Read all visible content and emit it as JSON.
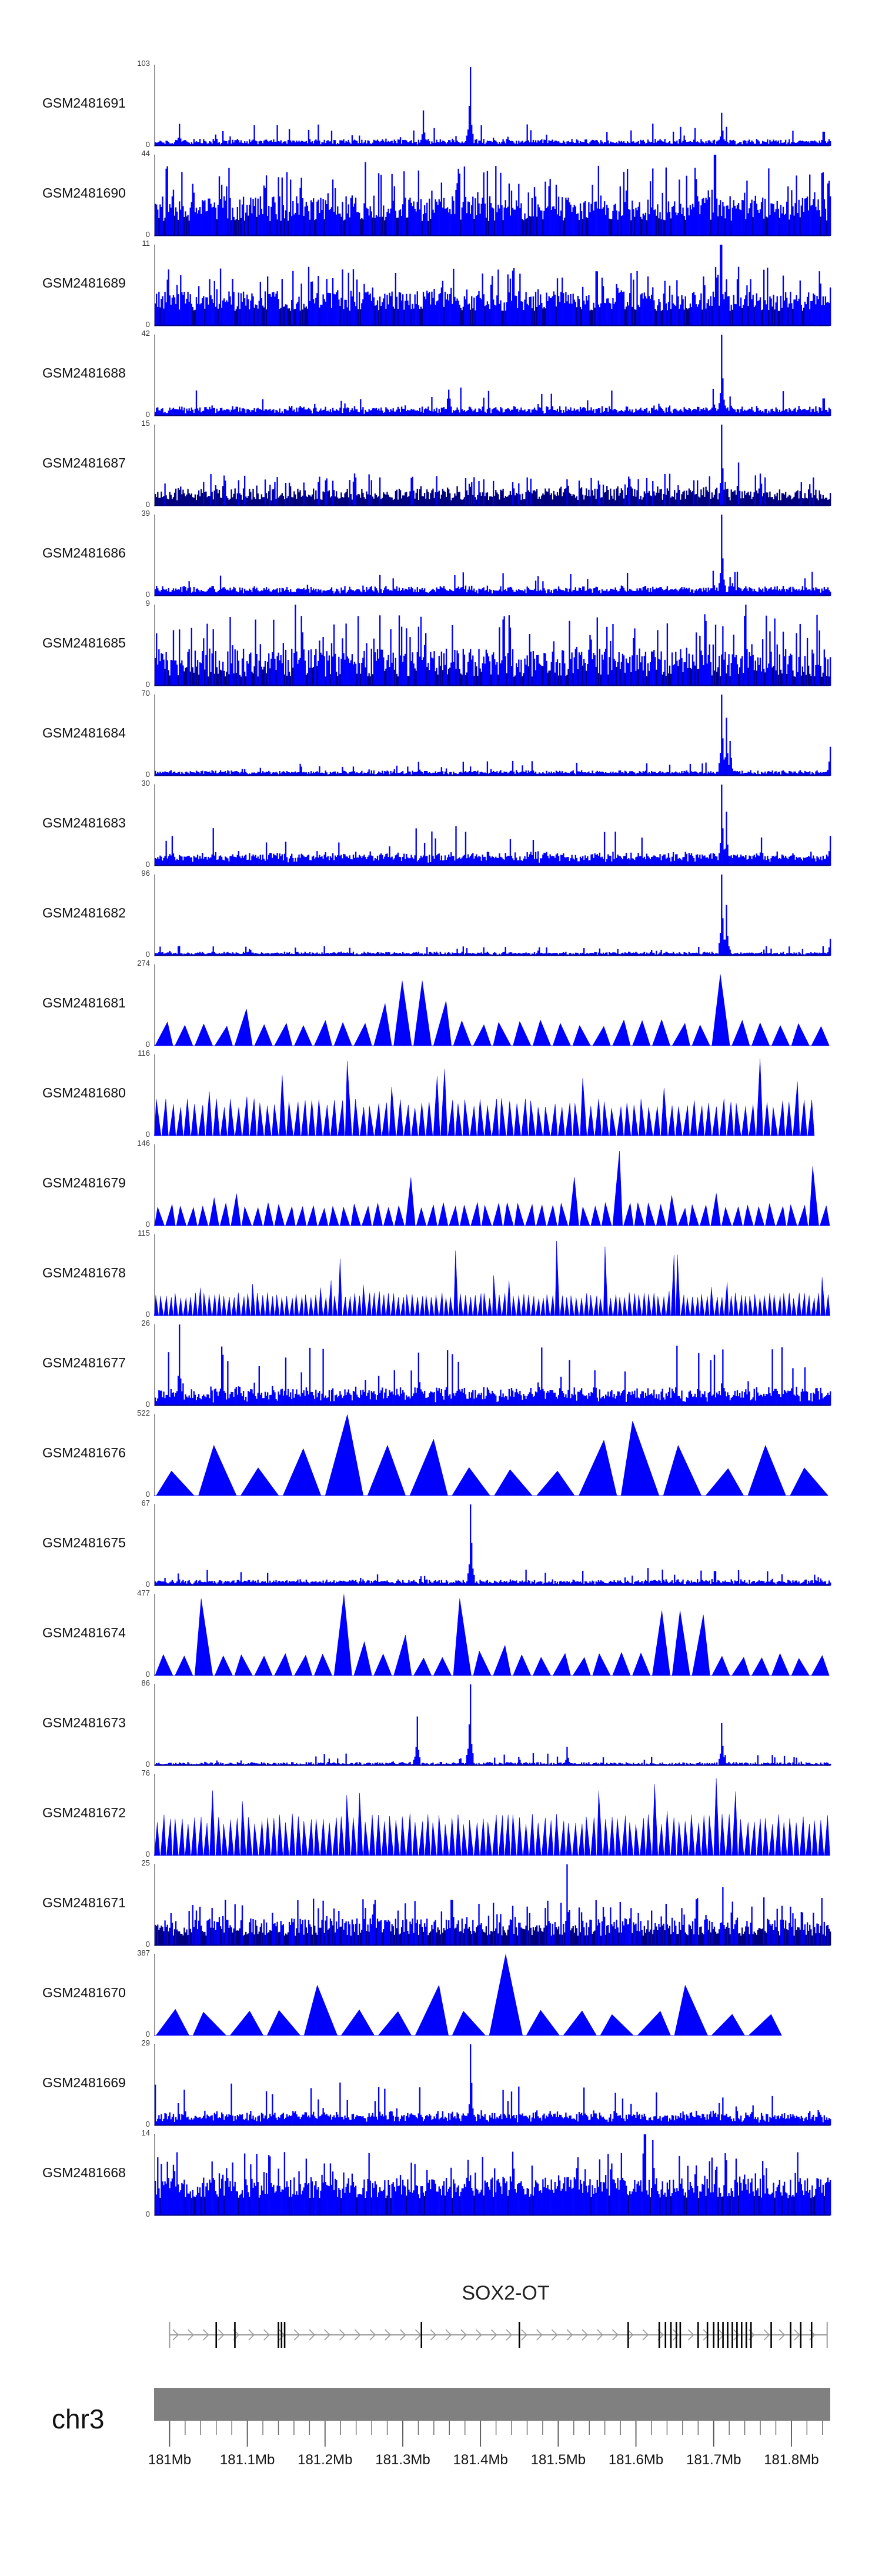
{
  "chart_data": {
    "type": "area",
    "description_free": true,
    "x_range_mb": [
      180.98,
      181.85
    ],
    "tracks": [
      {
        "name": "GSM2481691",
        "ymax": "103",
        "ymin": "0",
        "style": "signal",
        "baseline": 3,
        "noise": 10,
        "peaks": [
          [
            181.011,
            28
          ],
          [
            181.325,
            45
          ],
          [
            181.385,
            100
          ],
          [
            181.709,
            42
          ],
          [
            181.84,
            18
          ]
        ]
      },
      {
        "name": "GSM2481690",
        "ymax": "44",
        "ymin": "0",
        "style": "dense",
        "baseline": 8,
        "noise": 30,
        "peaks": [
          [
            181.25,
            40
          ],
          [
            181.55,
            38
          ],
          [
            181.7,
            44
          ]
        ]
      },
      {
        "name": "GSM2481689",
        "ymax": "11",
        "ymin": "0",
        "style": "dense",
        "baseline": 2,
        "noise": 6,
        "peaks": [
          [
            181.708,
            11
          ],
          [
            181.73,
            8
          ]
        ]
      },
      {
        "name": "GSM2481688",
        "ymax": "42",
        "ymin": "0",
        "style": "signal",
        "baseline": 2,
        "noise": 5,
        "peaks": [
          [
            181.709,
            42
          ],
          [
            181.698,
            14
          ],
          [
            181.72,
            10
          ],
          [
            181.84,
            9
          ]
        ]
      },
      {
        "name": "GSM2481687",
        "ymax": "15",
        "ymin": "0",
        "style": "dense",
        "baseline": 1,
        "noise": 5,
        "peaks": [
          [
            181.709,
            15
          ],
          [
            181.73,
            8
          ]
        ]
      },
      {
        "name": "GSM2481686",
        "ymax": "39",
        "ymin": "0",
        "style": "signal",
        "baseline": 2,
        "noise": 4,
        "peaks": [
          [
            181.709,
            39
          ],
          [
            181.698,
            12
          ],
          [
            181.72,
            9
          ]
        ]
      },
      {
        "name": "GSM2481685",
        "ymax": "9",
        "ymin": "0",
        "style": "dense",
        "baseline": 1,
        "noise": 7,
        "peaks": [
          [
            181.16,
            9
          ],
          [
            181.74,
            9
          ]
        ]
      },
      {
        "name": "GSM2481684",
        "ymax": "70",
        "ymin": "0",
        "style": "signal",
        "baseline": 2,
        "noise": 4,
        "peaks": [
          [
            181.709,
            70
          ],
          [
            181.715,
            50
          ],
          [
            181.72,
            30
          ],
          [
            181.319,
            12
          ],
          [
            181.385,
            8
          ],
          [
            181.848,
            25
          ]
        ]
      },
      {
        "name": "GSM2481683",
        "ymax": "30",
        "ymin": "0",
        "style": "signal",
        "baseline": 2,
        "noise": 5,
        "peaks": [
          [
            181.709,
            30
          ],
          [
            181.715,
            20
          ],
          [
            181.848,
            11
          ]
        ]
      },
      {
        "name": "GSM2481682",
        "ymax": "96",
        "ymin": "0",
        "style": "signal",
        "baseline": 2,
        "noise": 4,
        "peaks": [
          [
            181.709,
            96
          ],
          [
            181.715,
            60
          ],
          [
            181.848,
            20
          ]
        ]
      },
      {
        "name": "GSM2481681",
        "ymax": "274",
        "ymin": "0",
        "style": "tri",
        "count": 34,
        "base_h": 0.28,
        "peaks": [
          [
            181.311,
            0.8
          ],
          [
            181.709,
            0.88
          ],
          [
            181.27,
            0.52
          ],
          [
            181.35,
            0.55
          ]
        ]
      },
      {
        "name": "GSM2481680",
        "ymax": "116",
        "ymin": "0",
        "style": "tri",
        "count": 90,
        "base_h": 0.4,
        "end": 181.83,
        "peaks": [
          [
            181.229,
            0.92
          ],
          [
            181.352,
            0.82
          ],
          [
            181.735,
            0.95
          ],
          [
            181.757,
            0.95
          ],
          [
            181.29,
            0.6
          ]
        ]
      },
      {
        "name": "GSM2481679",
        "ymax": "146",
        "ymin": "0",
        "style": "tri",
        "count": 62,
        "base_h": 0.25,
        "peaks": [
          [
            181.58,
            0.92
          ],
          [
            181.31,
            0.45
          ],
          [
            181.52,
            0.6
          ],
          [
            181.83,
            0.5
          ]
        ]
      },
      {
        "name": "GSM2481678",
        "ymax": "115",
        "ymin": "0",
        "style": "tri",
        "count": 140,
        "base_h": 0.25,
        "peaks": [
          [
            181.5,
            0.92
          ],
          [
            181.37,
            0.8
          ],
          [
            181.56,
            0.85
          ],
          [
            181.22,
            0.7
          ],
          [
            181.65,
            0.75
          ]
        ]
      },
      {
        "name": "GSM2481677",
        "ymax": "26",
        "ymin": "0",
        "style": "signal",
        "baseline": 2,
        "noise": 7,
        "peaks": [
          [
            181.011,
            26
          ],
          [
            181.319,
            17
          ],
          [
            181.37,
            14
          ],
          [
            181.71,
            18
          ],
          [
            181.8,
            12
          ]
        ]
      },
      {
        "name": "GSM2481676",
        "ymax": "522",
        "ymin": "0",
        "style": "tri",
        "count": 16,
        "base_h": 0.35,
        "peaks": [
          [
            181.034,
            0.62
          ],
          [
            181.169,
            0.58
          ],
          [
            181.207,
            1.0
          ],
          [
            181.304,
            0.62
          ],
          [
            181.605,
            0.92
          ],
          [
            181.626,
            0.62
          ],
          [
            181.761,
            0.62
          ]
        ]
      },
      {
        "name": "GSM2481675",
        "ymax": "67",
        "ymin": "0",
        "style": "signal",
        "baseline": 2,
        "noise": 5,
        "peaks": [
          [
            181.386,
            67
          ],
          [
            181.01,
            10
          ],
          [
            181.7,
            12
          ]
        ]
      },
      {
        "name": "GSM2481674",
        "ymax": "477",
        "ymin": "0",
        "style": "tri",
        "count": 34,
        "base_h": 0.25,
        "peaks": [
          [
            181.042,
            0.95
          ],
          [
            181.212,
            0.75
          ],
          [
            181.369,
            0.95
          ],
          [
            181.647,
            0.8
          ],
          [
            181.677,
            0.75
          ],
          [
            181.3,
            0.5
          ]
        ]
      },
      {
        "name": "GSM2481673",
        "ymax": "86",
        "ymin": "0",
        "style": "signal",
        "baseline": 1,
        "noise": 5,
        "peaks": [
          [
            181.317,
            52
          ],
          [
            181.385,
            86
          ],
          [
            181.709,
            45
          ],
          [
            181.51,
            20
          ]
        ]
      },
      {
        "name": "GSM2481672",
        "ymax": "76",
        "ymin": "0",
        "style": "tri",
        "count": 110,
        "base_h": 0.45,
        "peaks": [
          [
            181.699,
            0.95
          ],
          [
            181.64,
            0.55
          ],
          [
            181.56,
            0.45
          ]
        ]
      },
      {
        "name": "GSM2481671",
        "ymax": "25",
        "ymin": "0",
        "style": "dense",
        "baseline": 3,
        "noise": 12,
        "peaks": [
          [
            181.51,
            25
          ],
          [
            181.71,
            18
          ]
        ]
      },
      {
        "name": "GSM2481670",
        "ymax": "387",
        "ymin": "0",
        "style": "tri",
        "count": 17,
        "base_h": 0.3,
        "end": 181.79,
        "peaks": [
          [
            181.179,
            0.62
          ],
          [
            181.34,
            0.62
          ],
          [
            181.441,
            0.98
          ],
          [
            181.663,
            0.62
          ],
          [
            181.41,
            0.58
          ],
          [
            181.42,
            0.62
          ]
        ]
      },
      {
        "name": "GSM2481669",
        "ymax": "29",
        "ymin": "0",
        "style": "signal",
        "baseline": 2,
        "noise": 5,
        "peaks": [
          [
            181.386,
            29
          ],
          [
            181.01,
            8
          ],
          [
            181.71,
            10
          ]
        ]
      },
      {
        "name": "GSM2481668",
        "ymax": "14",
        "ymin": "0",
        "style": "dense",
        "baseline": 3,
        "noise": 8,
        "peaks": [
          [
            181.61,
            14
          ],
          [
            181.62,
            13
          ],
          [
            181.44,
            11
          ]
        ]
      }
    ],
    "gene": {
      "name": "SOX2-OT",
      "strand": "+",
      "exons_mb": [
        181.06,
        181.084,
        181.14,
        181.144,
        181.148,
        181.324,
        181.45,
        181.59,
        181.63,
        181.638,
        181.645,
        181.652,
        181.657,
        181.68,
        181.692,
        181.7,
        181.706,
        181.712,
        181.718,
        181.724,
        181.73,
        181.736,
        181.742,
        181.748,
        181.774,
        181.799,
        181.812,
        181.826
      ]
    },
    "ideogram": {
      "chromosome": "chr3",
      "ticks_mb": [
        181.0,
        181.1,
        181.2,
        181.3,
        181.4,
        181.5,
        181.6,
        181.7,
        181.8
      ],
      "tick_labels": [
        "181Mb",
        "181.1Mb",
        "181.2Mb",
        "181.3Mb",
        "181.4Mb",
        "181.5Mb",
        "181.6Mb",
        "181.7Mb",
        "181.8Mb"
      ],
      "minor_step_mb": 0.02
    }
  },
  "colors": {
    "signal": "#0000ff",
    "signal_dark": "#00007f",
    "axis": "#555555",
    "ideogram_fill": "#808080",
    "gene_line": "#9a9a9a",
    "exon": "#000000"
  }
}
